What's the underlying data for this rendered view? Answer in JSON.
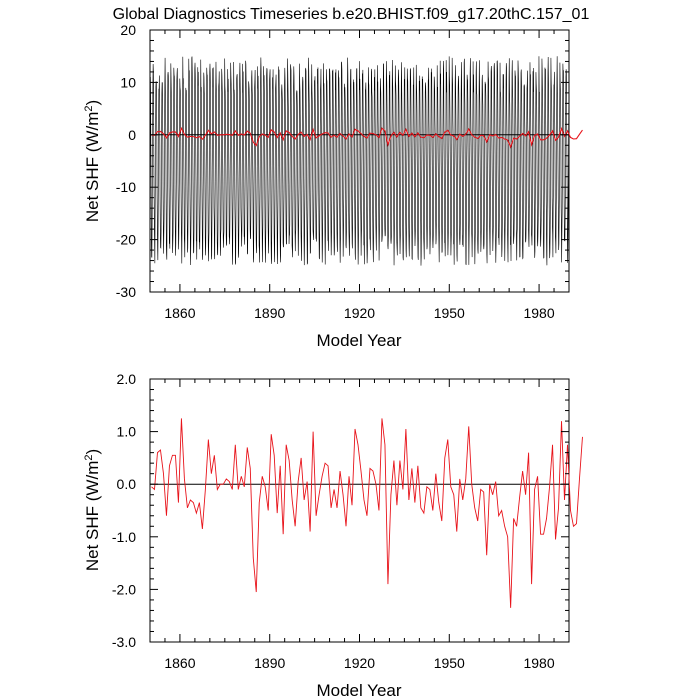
{
  "title": "Global Diagnostics Timeseries b.e20.BHIST.f09_g17.20thC.157_01",
  "colors": {
    "monthly": "#000000",
    "annual": "#e8141b",
    "zero_line": "#000000"
  },
  "chart_data": [
    {
      "type": "line",
      "name": "top-panel",
      "xlabel": "Model Year",
      "ylabel_main": "Net SHF (W/m",
      "ylabel_sup": "2",
      "ylabel_close": ")",
      "xlim": [
        1850,
        1990
      ],
      "ylim": [
        -30,
        20
      ],
      "xticks": [
        1860,
        1890,
        1920,
        1950,
        1980
      ],
      "yticks": [
        -30,
        -20,
        -10,
        0,
        10,
        20
      ],
      "ytick_labels": [
        "-30",
        "-20",
        "-10",
        "0",
        "10",
        "20"
      ],
      "grid": false,
      "series": [
        {
          "kind": "monthly",
          "description_range": [
            -24,
            12
          ],
          "color": "#000000"
        },
        {
          "kind": "annual",
          "color": "#e8141b"
        }
      ]
    },
    {
      "type": "line",
      "name": "bottom-panel",
      "xlabel": "Model Year",
      "ylabel_main": "Net SHF (W/m",
      "ylabel_sup": "2",
      "ylabel_close": ")",
      "xlim": [
        1850,
        1990
      ],
      "ylim": [
        -3.0,
        2.0
      ],
      "xticks": [
        1860,
        1890,
        1920,
        1950,
        1980
      ],
      "yticks": [
        -3.0,
        -2.0,
        -1.0,
        0.0,
        1.0,
        2.0
      ],
      "ytick_labels": [
        "-3.0",
        "-2.0",
        "-1.0",
        "0.0",
        "1.0",
        "2.0"
      ],
      "grid": false,
      "series": [
        {
          "kind": "annual",
          "color": "#e8141b",
          "x_start": 1850,
          "values": [
            -0.05,
            -0.1,
            0.6,
            0.65,
            0.2,
            -0.6,
            0.35,
            0.55,
            0.55,
            -0.35,
            1.25,
            0.1,
            -0.45,
            -0.3,
            -0.35,
            -0.55,
            -0.35,
            -0.85,
            -0.1,
            0.85,
            0.2,
            0.55,
            -0.1,
            0.0,
            0.0,
            0.1,
            0.05,
            -0.1,
            0.75,
            -0.1,
            0.15,
            -0.05,
            0.7,
            0.3,
            -1.4,
            -2.05,
            -0.35,
            0.15,
            -0.05,
            -0.5,
            0.95,
            0.55,
            -0.55,
            0.35,
            -0.95,
            0.75,
            0.45,
            -0.3,
            -0.8,
            0.05,
            0.5,
            -0.3,
            0.05,
            -0.9,
            1.0,
            -0.6,
            -0.2,
            0.15,
            0.4,
            0.35,
            -0.45,
            -0.1,
            -0.45,
            0.25,
            -0.2,
            -0.8,
            0.15,
            -0.4,
            1.05,
            0.75,
            0.25,
            -0.3,
            -0.6,
            0.3,
            0.25,
            0.0,
            -0.5,
            1.25,
            0.75,
            -1.9,
            -0.2,
            0.45,
            -0.4,
            0.45,
            -0.1,
            1.05,
            -0.3,
            0.3,
            -0.35,
            0.35,
            -0.45,
            -0.55,
            -0.05,
            -0.1,
            -0.5,
            0.2,
            -0.35,
            -0.7,
            0.5,
            0.85,
            -0.05,
            -0.2,
            -0.9,
            0.1,
            -0.3,
            0.1,
            1.1,
            0.0,
            -0.45,
            -0.7,
            -0.1,
            -0.15,
            -1.35,
            0.0,
            -0.2,
            0.05,
            -0.6,
            -0.5,
            -0.8,
            -1.0,
            -2.35,
            -0.65,
            -0.8,
            -0.25,
            0.25,
            -0.2,
            0.6,
            -1.9,
            -0.1,
            0.15,
            -0.95,
            -0.95,
            -0.65,
            -0.05,
            0.75,
            -1.05,
            -0.45,
            1.2,
            -0.3,
            0.75,
            -0.5,
            -0.8,
            -0.75,
            0.1,
            0.9
          ]
        }
      ]
    }
  ]
}
